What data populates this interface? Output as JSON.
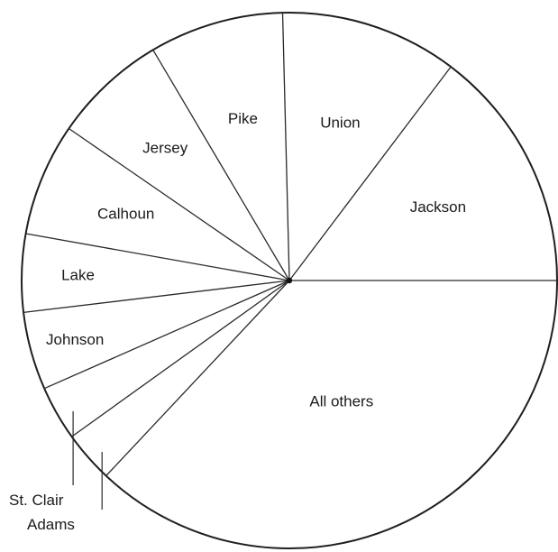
{
  "chart_data": {
    "type": "pie",
    "slices": [
      {
        "label": "Jackson",
        "value": 14.7
      },
      {
        "label": "Union",
        "value": 10.7
      },
      {
        "label": "Pike",
        "value": 8.1
      },
      {
        "label": "Jersey",
        "value": 6.9
      },
      {
        "label": "Calhoun",
        "value": 6.8
      },
      {
        "label": "Lake",
        "value": 4.7
      },
      {
        "label": "Johnson",
        "value": 4.7
      },
      {
        "label": "St. Clair",
        "value": 3.3
      },
      {
        "label": "Adams",
        "value": 3.1
      },
      {
        "label": "All others",
        "value": 37.0
      }
    ]
  }
}
